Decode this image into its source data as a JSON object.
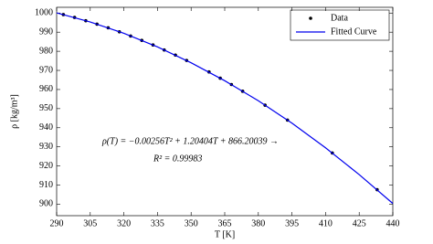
{
  "chart_data": {
    "type": "scatter",
    "xlabel": "T [K]",
    "ylabel": "ρ [kg/m³]",
    "xlim": [
      290,
      440
    ],
    "xticks": [
      290,
      305,
      320,
      335,
      350,
      365,
      380,
      395,
      410,
      425,
      440
    ],
    "ylim": [
      894,
      1003
    ],
    "yticks": [
      900,
      910,
      920,
      930,
      940,
      950,
      960,
      970,
      980,
      990,
      1000
    ],
    "legend": "upper right",
    "annotations": [
      "ρ(T) = −0.00256T² + 1.20404T + 866.20039 →",
      "R² = 0.99983"
    ],
    "series": [
      {
        "name": "Data",
        "type": "scatter",
        "color": "#000000",
        "x": [
          293,
          298,
          303,
          308,
          313,
          318,
          323,
          328,
          333,
          338,
          343,
          348,
          358,
          363,
          368,
          373,
          383,
          393,
          413,
          433
        ],
        "values": [
          999.2,
          997.7,
          996.0,
          994.2,
          992.3,
          990.2,
          988.0,
          985.7,
          983.3,
          980.7,
          978.0,
          975.2,
          969.2,
          965.9,
          962.6,
          959.1,
          951.8,
          944.0,
          926.8,
          907.6
        ]
      },
      {
        "name": "Fitted Curve",
        "type": "line",
        "color": "#0000ee",
        "x": [
          290,
          305,
          320,
          335,
          350,
          365,
          380,
          395,
          410,
          425,
          440
        ],
        "values": [
          1000.1,
          995.3,
          989.4,
          982.3,
          974.0,
          964.6,
          954.1,
          942.4,
          929.5,
          915.5,
          900.4
        ]
      }
    ]
  }
}
